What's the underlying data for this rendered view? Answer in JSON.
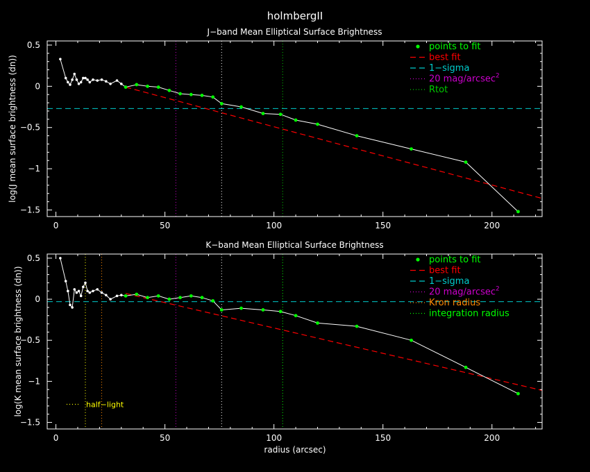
{
  "title": "holmbergII",
  "colors": {
    "background": "#000000",
    "axes": "#ffffff",
    "points_to_fit": "#00ff00",
    "best_fit": "#ff0000",
    "sigma": "#00cccc",
    "mag20": "#cc00cc",
    "rtot": "#00cc00",
    "kron": "#ff8800",
    "integration": "#00ff00",
    "half_light": "#ffff00",
    "data_line": "#ffffff"
  },
  "xlabel": "radius (arcsec)",
  "chart_data": [
    {
      "type": "line",
      "title": "J−band Mean Elliptical Surface Brightness",
      "ylabel": "log(J mean surface brightness (dn))",
      "xlim": [
        -4,
        223
      ],
      "ylim": [
        -1.58,
        0.55
      ],
      "xticks": [
        0,
        50,
        100,
        150,
        200
      ],
      "yticks": [
        0.5,
        0,
        -0.5,
        -1,
        -1.5
      ],
      "xtick_labels": [
        "0",
        "50",
        "100",
        "150",
        "200"
      ],
      "ytick_labels": [
        "0.5",
        "0",
        "−0.5",
        "−1",
        "−1.5"
      ],
      "legend": {
        "position": "top-right",
        "entries": [
          {
            "key": "points",
            "label": "points to fit"
          },
          {
            "key": "best_fit",
            "label": "best fit"
          },
          {
            "key": "sigma",
            "label": "1−sigma"
          },
          {
            "key": "mag20",
            "label": "20 mag/arcsec",
            "sup": "2"
          },
          {
            "key": "rtot",
            "label": "Rtot"
          }
        ]
      },
      "profile": {
        "x": [
          2,
          4.5,
          5.5,
          6.5,
          7.5,
          8.5,
          9.5,
          10.5,
          11.5,
          12.5,
          13.5,
          14.5,
          15.5,
          17,
          19,
          21,
          23,
          25,
          28,
          30,
          32,
          37,
          42,
          47,
          52,
          57,
          62,
          67,
          72,
          76,
          85,
          95,
          103,
          110,
          120,
          138,
          163,
          188,
          212
        ],
        "y": [
          0.33,
          0.1,
          0.05,
          0.02,
          0.08,
          0.15,
          0.08,
          0.03,
          0.05,
          0.1,
          0.1,
          0.08,
          0.05,
          0.08,
          0.07,
          0.08,
          0.06,
          0.03,
          0.07,
          0.03,
          -0.01,
          0.02,
          0.0,
          -0.01,
          -0.05,
          -0.09,
          -0.1,
          -0.11,
          -0.13,
          -0.21,
          -0.25,
          -0.33,
          -0.34,
          -0.41,
          -0.46,
          -0.6,
          -0.76,
          -0.92,
          -1.52
        ]
      },
      "fit_points": {
        "x": [
          32,
          37,
          42,
          47,
          52,
          57,
          62,
          67,
          72,
          76,
          85,
          95,
          103,
          110,
          120,
          138,
          163,
          188,
          212
        ],
        "y": [
          -0.01,
          0.02,
          0.0,
          -0.01,
          -0.05,
          -0.09,
          -0.1,
          -0.11,
          -0.13,
          -0.21,
          -0.25,
          -0.33,
          -0.34,
          -0.41,
          -0.46,
          -0.6,
          -0.76,
          -0.92,
          -1.52
        ]
      },
      "best_fit": {
        "x": [
          32,
          223
        ],
        "y": [
          -0.01,
          -1.36
        ]
      },
      "sigma_level": -0.27,
      "vlines": [
        {
          "key": "mag20",
          "x": 55
        },
        {
          "key": "white",
          "x": 76
        },
        {
          "key": "rtot",
          "x": 104
        }
      ]
    },
    {
      "type": "line",
      "title": "K−band Mean Elliptical Surface Brightness",
      "ylabel": "log(K mean surface brightness (dn))",
      "xlim": [
        -4,
        223
      ],
      "ylim": [
        -1.58,
        0.55
      ],
      "xticks": [
        0,
        50,
        100,
        150,
        200
      ],
      "yticks": [
        0.5,
        0,
        -0.5,
        -1,
        -1.5
      ],
      "xtick_labels": [
        "0",
        "50",
        "100",
        "150",
        "200"
      ],
      "ytick_labels": [
        "0.5",
        "0",
        "−0.5",
        "−1",
        "−1.5"
      ],
      "legend": {
        "position": "top-right",
        "entries": [
          {
            "key": "points",
            "label": "points to fit"
          },
          {
            "key": "best_fit",
            "label": "best fit"
          },
          {
            "key": "sigma",
            "label": "1−sigma"
          },
          {
            "key": "mag20",
            "label": "20 mag/arcsec",
            "sup": "2"
          },
          {
            "key": "kron",
            "label": "Kron radius"
          },
          {
            "key": "integration",
            "label": "integration radius"
          }
        ]
      },
      "annotation": "half−light",
      "profile": {
        "x": [
          2,
          4.5,
          5.5,
          6.5,
          7.5,
          8.5,
          9.5,
          10.5,
          11.5,
          12.5,
          13.5,
          14.5,
          15.5,
          17,
          19,
          21,
          23,
          25,
          28,
          30,
          32,
          37,
          42,
          47,
          52,
          57,
          62,
          67,
          72,
          76,
          85,
          95,
          103,
          110,
          120,
          138,
          163,
          188,
          212
        ],
        "y": [
          0.5,
          0.22,
          0.1,
          -0.07,
          -0.1,
          0.12,
          0.08,
          0.1,
          0.04,
          0.15,
          0.2,
          0.1,
          0.08,
          0.1,
          0.12,
          0.08,
          0.05,
          0.0,
          0.04,
          0.05,
          0.04,
          0.06,
          0.02,
          0.04,
          0.0,
          0.02,
          0.04,
          0.02,
          -0.02,
          -0.13,
          -0.11,
          -0.13,
          -0.15,
          -0.2,
          -0.29,
          -0.33,
          -0.5,
          -0.83,
          -1.15
        ]
      },
      "fit_points": {
        "x": [
          32,
          37,
          42,
          47,
          52,
          57,
          62,
          67,
          72,
          76,
          85,
          95,
          103,
          110,
          120,
          138,
          163,
          188,
          212
        ],
        "y": [
          0.04,
          0.06,
          0.02,
          0.04,
          0.0,
          0.02,
          0.04,
          0.02,
          -0.02,
          -0.13,
          -0.11,
          -0.13,
          -0.15,
          -0.2,
          -0.29,
          -0.33,
          -0.5,
          -0.83,
          -1.15
        ]
      },
      "best_fit": {
        "x": [
          32,
          223
        ],
        "y": [
          0.07,
          -1.11
        ]
      },
      "sigma_level": -0.03,
      "vlines": [
        {
          "key": "half_light",
          "x": 13.5
        },
        {
          "key": "kron",
          "x": 21
        },
        {
          "key": "mag20",
          "x": 55
        },
        {
          "key": "white",
          "x": 76
        },
        {
          "key": "integration",
          "x": 104
        }
      ]
    }
  ]
}
